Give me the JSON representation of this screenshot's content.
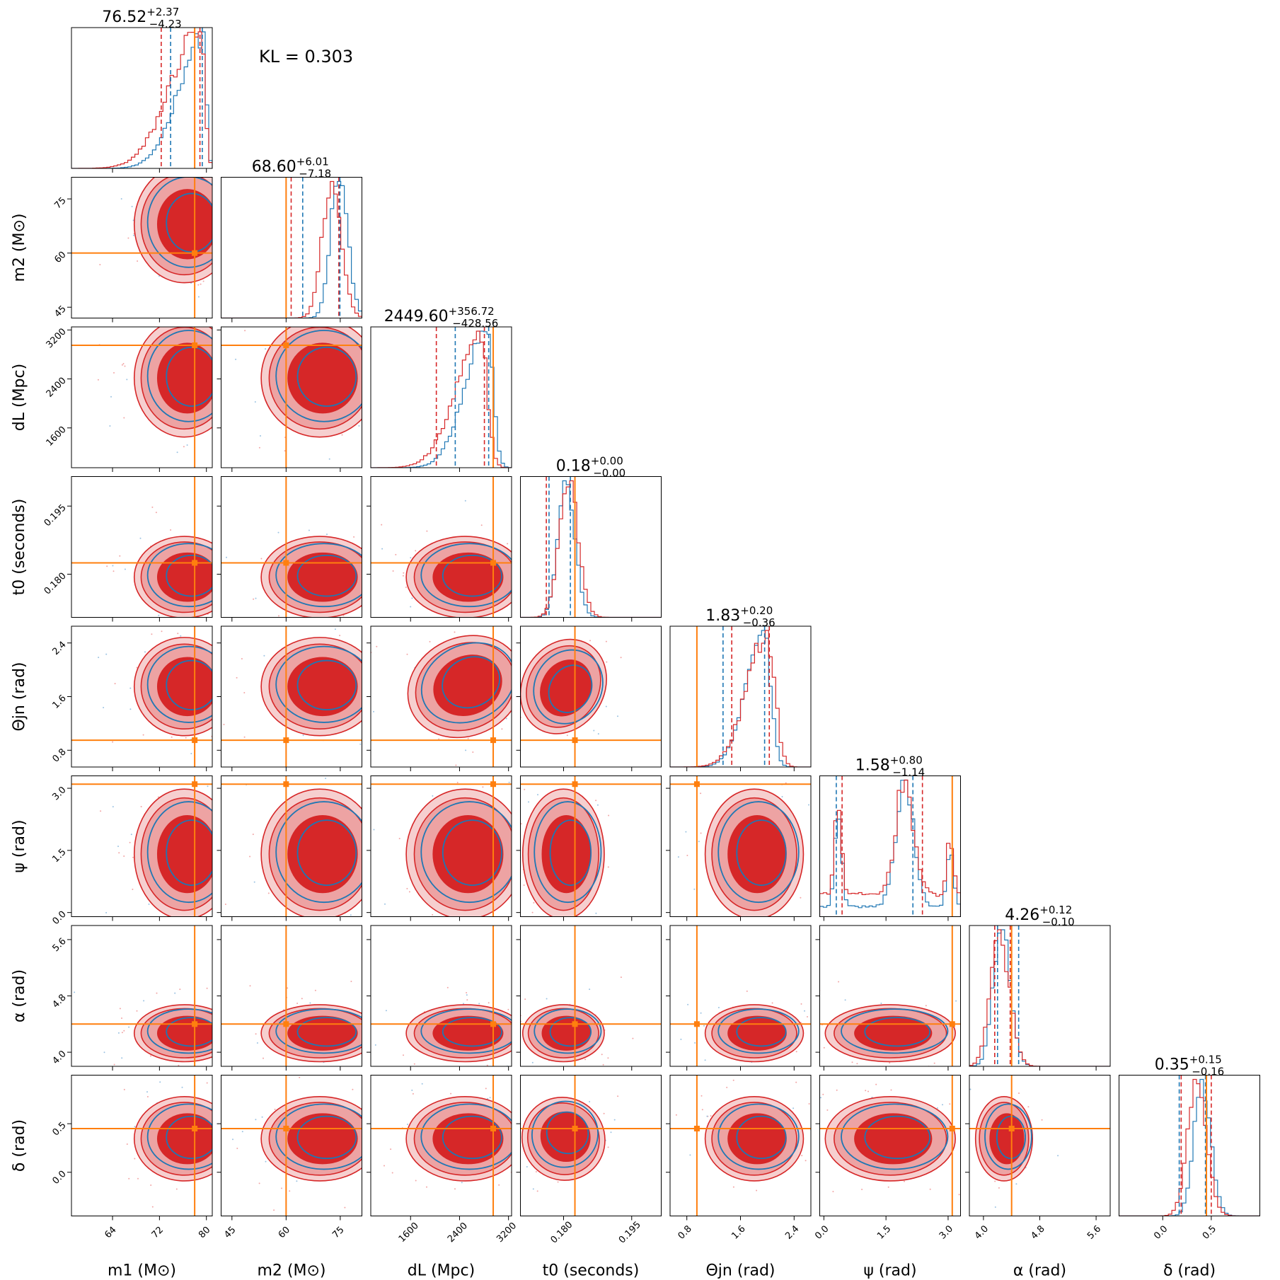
{
  "annotation": "KL = 0.303",
  "colors": {
    "blue": "#1f77b4",
    "red": "#d62728",
    "truth": "#ff7f0e"
  },
  "chart_data": {
    "type": "scatter",
    "chart_kind": "corner plot",
    "series": [
      {
        "color": "#1f77b4"
      },
      {
        "color": "#d62728"
      }
    ],
    "parameters": [
      {
        "name": "m1",
        "label": "m1 (M⊙)",
        "title": "76.52 +2.37 −4.23",
        "title_main": "76.52",
        "title_plus": "+2.37",
        "title_minus": "−4.23",
        "range": [
          57,
          81
        ],
        "ticks": [
          64,
          72,
          80
        ],
        "truth": 78,
        "blue_peak": 79.5,
        "red_peak": 79.0,
        "red_q": [
          72.3,
          78.9
        ],
        "blue_q": [
          73.9,
          79.3
        ]
      },
      {
        "name": "m2",
        "label": "m2 (M⊙)",
        "title": "68.60 +6.01 −7.18",
        "title_main": "68.60",
        "title_plus": "+6.01",
        "title_minus": "−7.18",
        "range": [
          42,
          81
        ],
        "ticks": [
          45,
          60,
          75
        ],
        "truth": 60,
        "blue_peak": 74.5,
        "red_peak": 72.5,
        "red_q": [
          61.4,
          74.6
        ],
        "blue_q": [
          64.6,
          74.9
        ]
      },
      {
        "name": "dL",
        "label": "dL (Mpc)",
        "title": "2449.60 +356.72 −428.56",
        "title_main": "2449.60",
        "title_plus": "+356.72",
        "title_minus": "−428.56",
        "range": [
          950,
          3250
        ],
        "ticks": [
          1600,
          2400,
          3200
        ],
        "truth": 2950,
        "blue_peak": 2850,
        "red_peak": 2750,
        "red_q": [
          2021,
          2806
        ],
        "blue_q": [
          2330,
          2876
        ]
      },
      {
        "name": "t0",
        "label": "t0 (seconds)",
        "title": "0.18 +0.00 −0.00",
        "title_main": "0.18",
        "title_plus": "+0.00",
        "title_minus": "−0.00",
        "range": [
          0.1705,
          0.2015
        ],
        "ticks": [
          0.18,
          0.195
        ],
        "tick_labels": [
          "0.180",
          "0.195"
        ],
        "truth": 0.1825,
        "blue_peak": 0.1805,
        "red_peak": 0.181,
        "red_q": [
          0.1762,
          0.1825
        ],
        "blue_q": [
          0.1768,
          0.1815
        ]
      },
      {
        "name": "theta_jn",
        "label": "Θjn (rad)",
        "title": "1.83 +0.20 −0.36",
        "title_main": "1.83",
        "title_plus": "+0.20",
        "title_minus": "−0.36",
        "range": [
          0.55,
          2.65
        ],
        "ticks": [
          0.8,
          1.6,
          2.4
        ],
        "truth": 0.95,
        "blue_peak": 1.95,
        "red_peak": 2.0,
        "red_q": [
          1.47,
          2.03
        ],
        "blue_q": [
          1.34,
          1.96
        ]
      },
      {
        "name": "psi",
        "label": "ψ (rad)",
        "title": "1.58 +0.80 −1.14",
        "title_main": "1.58",
        "title_plus": "+0.80",
        "title_minus": "−1.14",
        "range": [
          -0.1,
          3.3
        ],
        "ticks": [
          0.0,
          1.5,
          3.0
        ],
        "tick_labels": [
          "0.0",
          "1.5",
          "3.0"
        ],
        "truth": 3.1,
        "red_q": [
          0.44,
          2.38
        ],
        "blue_q": [
          0.3,
          2.15
        ]
      },
      {
        "name": "alpha",
        "label": "α (rad)",
        "title": "4.26 +0.12 −0.10",
        "title_main": "4.26",
        "title_plus": "+0.12",
        "title_minus": "−0.10",
        "range": [
          3.8,
          5.8
        ],
        "ticks": [
          4.0,
          4.8,
          5.6
        ],
        "tick_labels": [
          "4.0",
          "4.8",
          "5.6"
        ],
        "truth": 4.4,
        "blue_peak": 4.25,
        "red_peak": 4.23,
        "red_q": [
          4.16,
          4.38
        ],
        "blue_q": [
          4.2,
          4.5
        ]
      },
      {
        "name": "delta",
        "label": "δ (rad)",
        "title": "0.35 +0.15 −0.16",
        "title_main": "0.35",
        "title_plus": "+0.15",
        "title_minus": "−0.16",
        "range": [
          -0.45,
          1.0
        ],
        "ticks": [
          0.0,
          0.5
        ],
        "tick_labels": [
          "0.0",
          "0.5"
        ],
        "truth": 0.45,
        "blue_peak": 0.4,
        "red_peak": 0.35,
        "red_q": [
          0.19,
          0.5
        ],
        "blue_q": [
          0.17,
          0.44
        ]
      }
    ]
  }
}
